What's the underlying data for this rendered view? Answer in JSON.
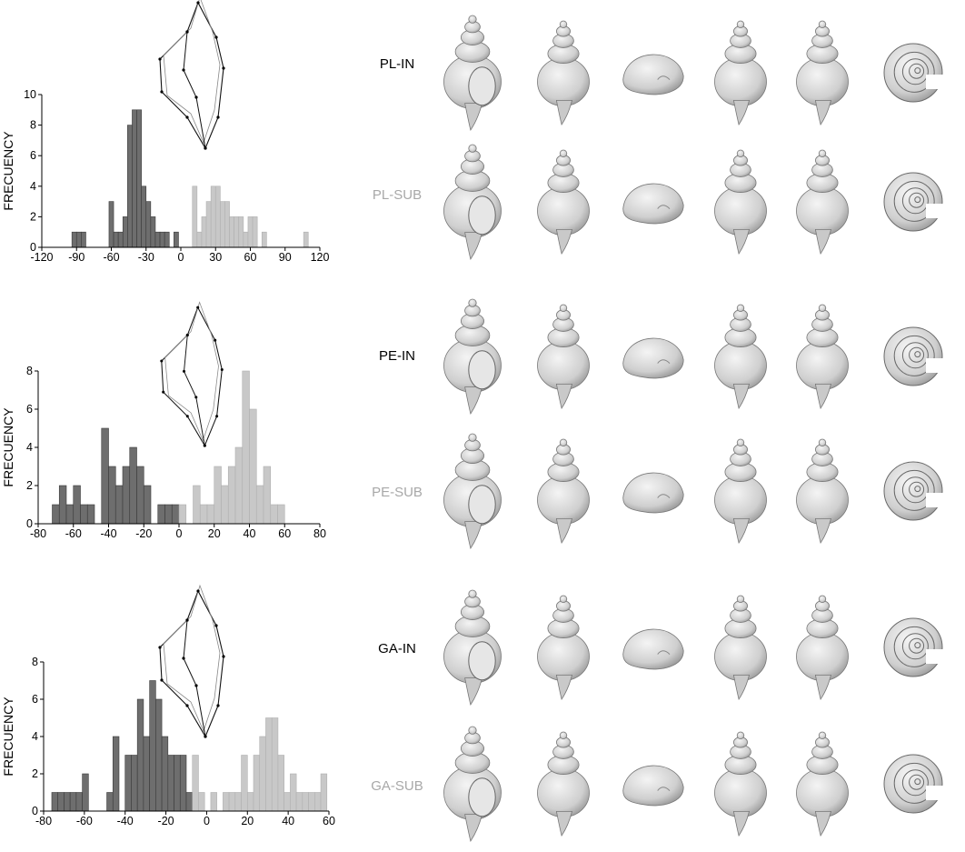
{
  "colors": {
    "dark": "#6e6e6e",
    "light": "#c8c8c8",
    "edge": "#2a2a2a",
    "shell": "#d9d9d9",
    "shell_edge": "#7a7a7a"
  },
  "chart_data": [
    {
      "type": "bar",
      "group": "PL",
      "ylabel": "FRECUENCY",
      "xlim": [
        -120,
        120
      ],
      "ylim": [
        0,
        10
      ],
      "bin_width": 4,
      "xticks": [
        "-120",
        "-90",
        "-60",
        "-30",
        "0",
        "30",
        "60",
        "90",
        "120"
      ],
      "yticks": [
        "0",
        "2",
        "4",
        "6",
        "8",
        "10"
      ],
      "series": [
        {
          "name": "PL-IN",
          "color": "dark",
          "x": [
            -92,
            -88,
            -84,
            -60,
            -56,
            -52,
            -48,
            -44,
            -40,
            -36,
            -32,
            -28,
            -24,
            -20,
            -16,
            -12,
            -4
          ],
          "values": [
            1,
            1,
            1,
            3,
            1,
            1,
            2,
            8,
            9,
            9,
            4,
            3,
            2,
            1,
            1,
            1,
            1
          ]
        },
        {
          "name": "PL-SUB",
          "color": "light",
          "x": [
            12,
            16,
            20,
            24,
            28,
            32,
            36,
            40,
            44,
            48,
            52,
            56,
            60,
            64,
            72,
            108
          ],
          "values": [
            4,
            1,
            2,
            3,
            4,
            4,
            3,
            3,
            2,
            2,
            2,
            1,
            2,
            2,
            1,
            1
          ]
        }
      ]
    },
    {
      "type": "bar",
      "group": "PE",
      "ylabel": "FRECUENCY",
      "xlim": [
        -80,
        80
      ],
      "ylim": [
        0,
        8
      ],
      "bin_width": 4,
      "xticks": [
        "-80",
        "-60",
        "-40",
        "-20",
        "0",
        "20",
        "40",
        "60",
        "80"
      ],
      "yticks": [
        "0",
        "2",
        "4",
        "6",
        "8"
      ],
      "series": [
        {
          "name": "PE-IN",
          "color": "dark",
          "x": [
            -70,
            -66,
            -62,
            -58,
            -54,
            -50,
            -42,
            -38,
            -34,
            -30,
            -26,
            -22,
            -18,
            -10,
            -6,
            -2
          ],
          "values": [
            1,
            2,
            1,
            2,
            1,
            1,
            5,
            3,
            2,
            3,
            4,
            3,
            2,
            1,
            1,
            1
          ]
        },
        {
          "name": "PE-SUB",
          "color": "light",
          "x": [
            2,
            10,
            14,
            18,
            22,
            26,
            30,
            34,
            38,
            42,
            46,
            50,
            54,
            58
          ],
          "values": [
            1,
            2,
            1,
            1,
            3,
            2,
            3,
            4,
            8,
            6,
            2,
            3,
            1,
            1
          ]
        }
      ]
    },
    {
      "type": "bar",
      "group": "GA",
      "ylabel": "FRECUENCY",
      "xlim": [
        -80,
        60
      ],
      "ylim": [
        0,
        8
      ],
      "bin_width": 3,
      "xticks": [
        "-80",
        "-60",
        "-40",
        "-20",
        "0",
        "20",
        "40",
        "60"
      ],
      "yticks": [
        "0",
        "2",
        "4",
        "6",
        "8"
      ],
      "series": [
        {
          "name": "GA-IN",
          "color": "dark",
          "x": [
            -74.5,
            -71.5,
            -68.5,
            -65.5,
            -62.5,
            -59.5,
            -47.5,
            -44.5,
            -38.5,
            -35.5,
            -32.5,
            -29.5,
            -26.5,
            -23.5,
            -20.5,
            -17.5,
            -14.5,
            -11.5,
            -8.5
          ],
          "values": [
            1,
            1,
            1,
            1,
            1,
            2,
            1,
            4,
            3,
            3,
            6,
            4,
            7,
            6,
            4,
            3,
            3,
            3,
            1
          ]
        },
        {
          "name": "GA-SUB",
          "color": "light",
          "x": [
            -5.5,
            -2.5,
            3.5,
            9.5,
            12.5,
            15.5,
            18.5,
            21.5,
            24.5,
            27.5,
            30.5,
            33.5,
            36.5,
            39.5,
            42.5,
            45.5,
            48.5,
            51.5,
            54.5,
            57.5
          ],
          "values": [
            3,
            1,
            1,
            1,
            1,
            1,
            3,
            1,
            3,
            4,
            5,
            5,
            3,
            1,
            2,
            1,
            1,
            1,
            1,
            2
          ]
        }
      ]
    }
  ],
  "rows": [
    {
      "label": "PL-IN",
      "kind": "in"
    },
    {
      "label": "PL-SUB",
      "kind": "sub"
    },
    {
      "label": "PE-IN",
      "kind": "in"
    },
    {
      "label": "PE-SUB",
      "kind": "sub"
    },
    {
      "label": "GA-IN",
      "kind": "in"
    },
    {
      "label": "GA-SUB",
      "kind": "sub"
    }
  ],
  "shell_views": [
    "apertural-view-icon",
    "lateral-view-icon",
    "apical-oblique-view-icon",
    "abapertural-view-icon",
    "side-profile-view-icon",
    "apex-top-view-icon"
  ]
}
